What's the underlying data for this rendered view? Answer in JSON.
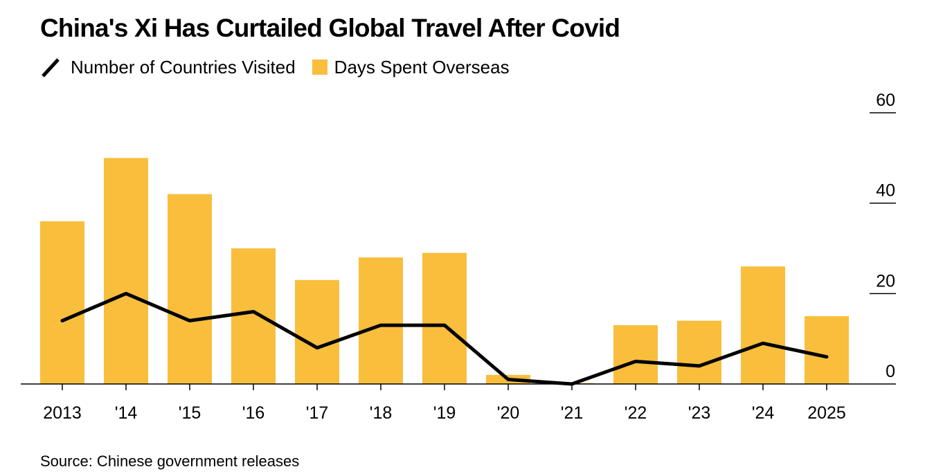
{
  "title": "China's Xi Has Curtailed Global Travel After Covid",
  "legend": [
    {
      "label": "Number of Countries Visited",
      "icon": "line-icon",
      "color": "#000000"
    },
    {
      "label": "Days Spent Overseas",
      "icon": "square-swatch-icon",
      "color": "#F8BE3C"
    }
  ],
  "source": "Source: Chinese government releases",
  "chart_data": {
    "type": "bar",
    "title": "China's Xi Has Curtailed Global Travel After Covid",
    "xlabel": "",
    "ylabel": "",
    "categories": [
      "2013",
      "'14",
      "'15",
      "'16",
      "'17",
      "'18",
      "'19",
      "'20",
      "'21",
      "'22",
      "'23",
      "'24",
      "2025"
    ],
    "series": [
      {
        "name": "Days Spent Overseas",
        "type": "bar",
        "color": "#F8BE3C",
        "values": [
          36,
          50,
          42,
          30,
          23,
          28,
          29,
          2,
          0.2,
          13,
          14,
          26,
          15
        ]
      },
      {
        "name": "Number of Countries Visited",
        "type": "line",
        "color": "#000000",
        "values": [
          14,
          20,
          14,
          16,
          8,
          13,
          13,
          1,
          0,
          5,
          4,
          9,
          6
        ]
      }
    ],
    "ylim": [
      0,
      60
    ],
    "yticks": [
      0,
      20,
      40,
      60
    ],
    "ytick_labels": [
      "0",
      "20",
      "40",
      "60"
    ],
    "y_axis_side": "right",
    "grid": false,
    "legend_position": "top-left"
  }
}
